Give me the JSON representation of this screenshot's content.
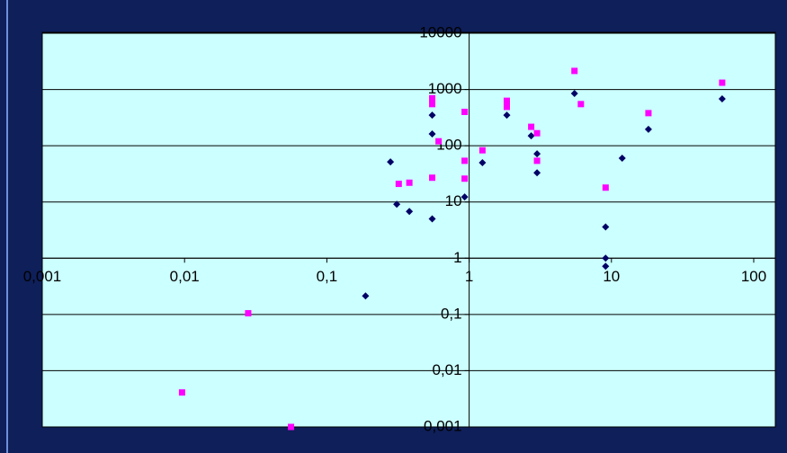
{
  "chart_data": {
    "type": "scatter",
    "log_x": true,
    "log_y": true,
    "grid": true,
    "xlim": [
      0.001,
      100
    ],
    "ylim": [
      0.001,
      10000
    ],
    "xticks": [
      {
        "value": 0.001,
        "label": "0,001"
      },
      {
        "value": 0.01,
        "label": "0,01"
      },
      {
        "value": 0.1,
        "label": "0,1"
      },
      1,
      10,
      100
    ],
    "yticks": [
      {
        "value": 0.001,
        "label": "0,001"
      },
      {
        "value": 0.01,
        "label": "0,01"
      },
      {
        "value": 0.1,
        "label": "0,1"
      },
      1,
      10,
      100,
      1000,
      10000
    ],
    "series": [
      {
        "color": "#000066",
        "marker": "diamond",
        "x": [
          0.187,
          0.28,
          0.31,
          0.38,
          0.55,
          0.55,
          0.55,
          0.93,
          1.24,
          1.84,
          2.73,
          3.0,
          3.0,
          5.5,
          9.1,
          9.1,
          9.1,
          11.9,
          18.2,
          60
        ],
        "values": [
          0.213,
          51.5,
          9.1,
          6.8,
          350,
          162,
          5.0,
          12.3,
          50,
          350,
          150,
          72,
          33,
          850,
          3.6,
          1.0,
          0.72,
          60,
          196,
          680
        ]
      },
      {
        "color": "#ff00ff",
        "marker": "square",
        "x": [
          0.0096,
          0.028,
          0.056,
          0.32,
          0.38,
          0.55,
          0.55,
          0.55,
          0.61,
          0.93,
          0.93,
          0.93,
          1.24,
          1.84,
          1.84,
          2.73,
          3.0,
          3.0,
          5.5,
          6.1,
          9.1,
          18.2,
          60
        ],
        "values": [
          0.0041,
          0.105,
          0.001,
          21,
          22,
          700,
          550,
          27,
          120,
          400,
          54,
          26,
          83,
          630,
          490,
          217,
          167,
          54,
          2140,
          550,
          18,
          380,
          1320
        ]
      }
    ]
  }
}
